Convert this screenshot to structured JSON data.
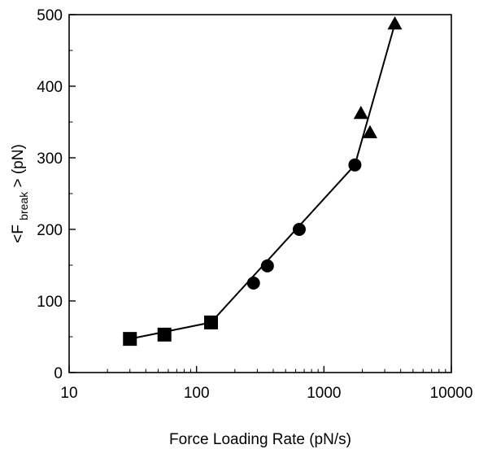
{
  "chart_data": {
    "type": "scatter",
    "title": "",
    "xlabel": "Force Loading Rate (pN/s)",
    "ylabel": {
      "prefix": "<F",
      "subscript": "break",
      "suffix": "> (pN)"
    },
    "xscale": "log",
    "xlim": [
      10,
      10000
    ],
    "ylim": [
      0,
      500
    ],
    "xticks": [
      {
        "value": 10,
        "label": "10"
      },
      {
        "value": 100,
        "label": "100"
      },
      {
        "value": 1000,
        "label": "1000"
      },
      {
        "value": 10000,
        "label": "10000"
      }
    ],
    "yticks": [
      {
        "value": 0,
        "label": "0"
      },
      {
        "value": 100,
        "label": "100"
      },
      {
        "value": 200,
        "label": "200"
      },
      {
        "value": 300,
        "label": "300"
      },
      {
        "value": 400,
        "label": "400"
      },
      {
        "value": 500,
        "label": "500"
      }
    ],
    "grid": false,
    "legend": "none",
    "series": [
      {
        "marker": "square",
        "color": "#000000",
        "points": [
          {
            "x": 30,
            "y": 47
          },
          {
            "x": 56,
            "y": 53
          },
          {
            "x": 130,
            "y": 70
          }
        ]
      },
      {
        "marker": "circle",
        "color": "#000000",
        "points": [
          {
            "x": 280,
            "y": 125
          },
          {
            "x": 360,
            "y": 149
          },
          {
            "x": 640,
            "y": 200
          },
          {
            "x": 1750,
            "y": 290
          }
        ]
      },
      {
        "marker": "triangle",
        "color": "#000000",
        "points": [
          {
            "x": 1950,
            "y": 362
          },
          {
            "x": 2300,
            "y": 335
          },
          {
            "x": 3600,
            "y": 487
          }
        ]
      }
    ],
    "fit_lines": [
      {
        "style": "solid",
        "color": "#000000",
        "points": [
          {
            "x": 30,
            "y": 47
          },
          {
            "x": 130,
            "y": 70
          }
        ]
      },
      {
        "style": "solid",
        "color": "#000000",
        "points": [
          {
            "x": 130,
            "y": 70
          },
          {
            "x": 1750,
            "y": 290
          }
        ]
      },
      {
        "style": "solid",
        "color": "#000000",
        "points": [
          {
            "x": 1750,
            "y": 290
          },
          {
            "x": 3600,
            "y": 487
          }
        ]
      }
    ]
  }
}
